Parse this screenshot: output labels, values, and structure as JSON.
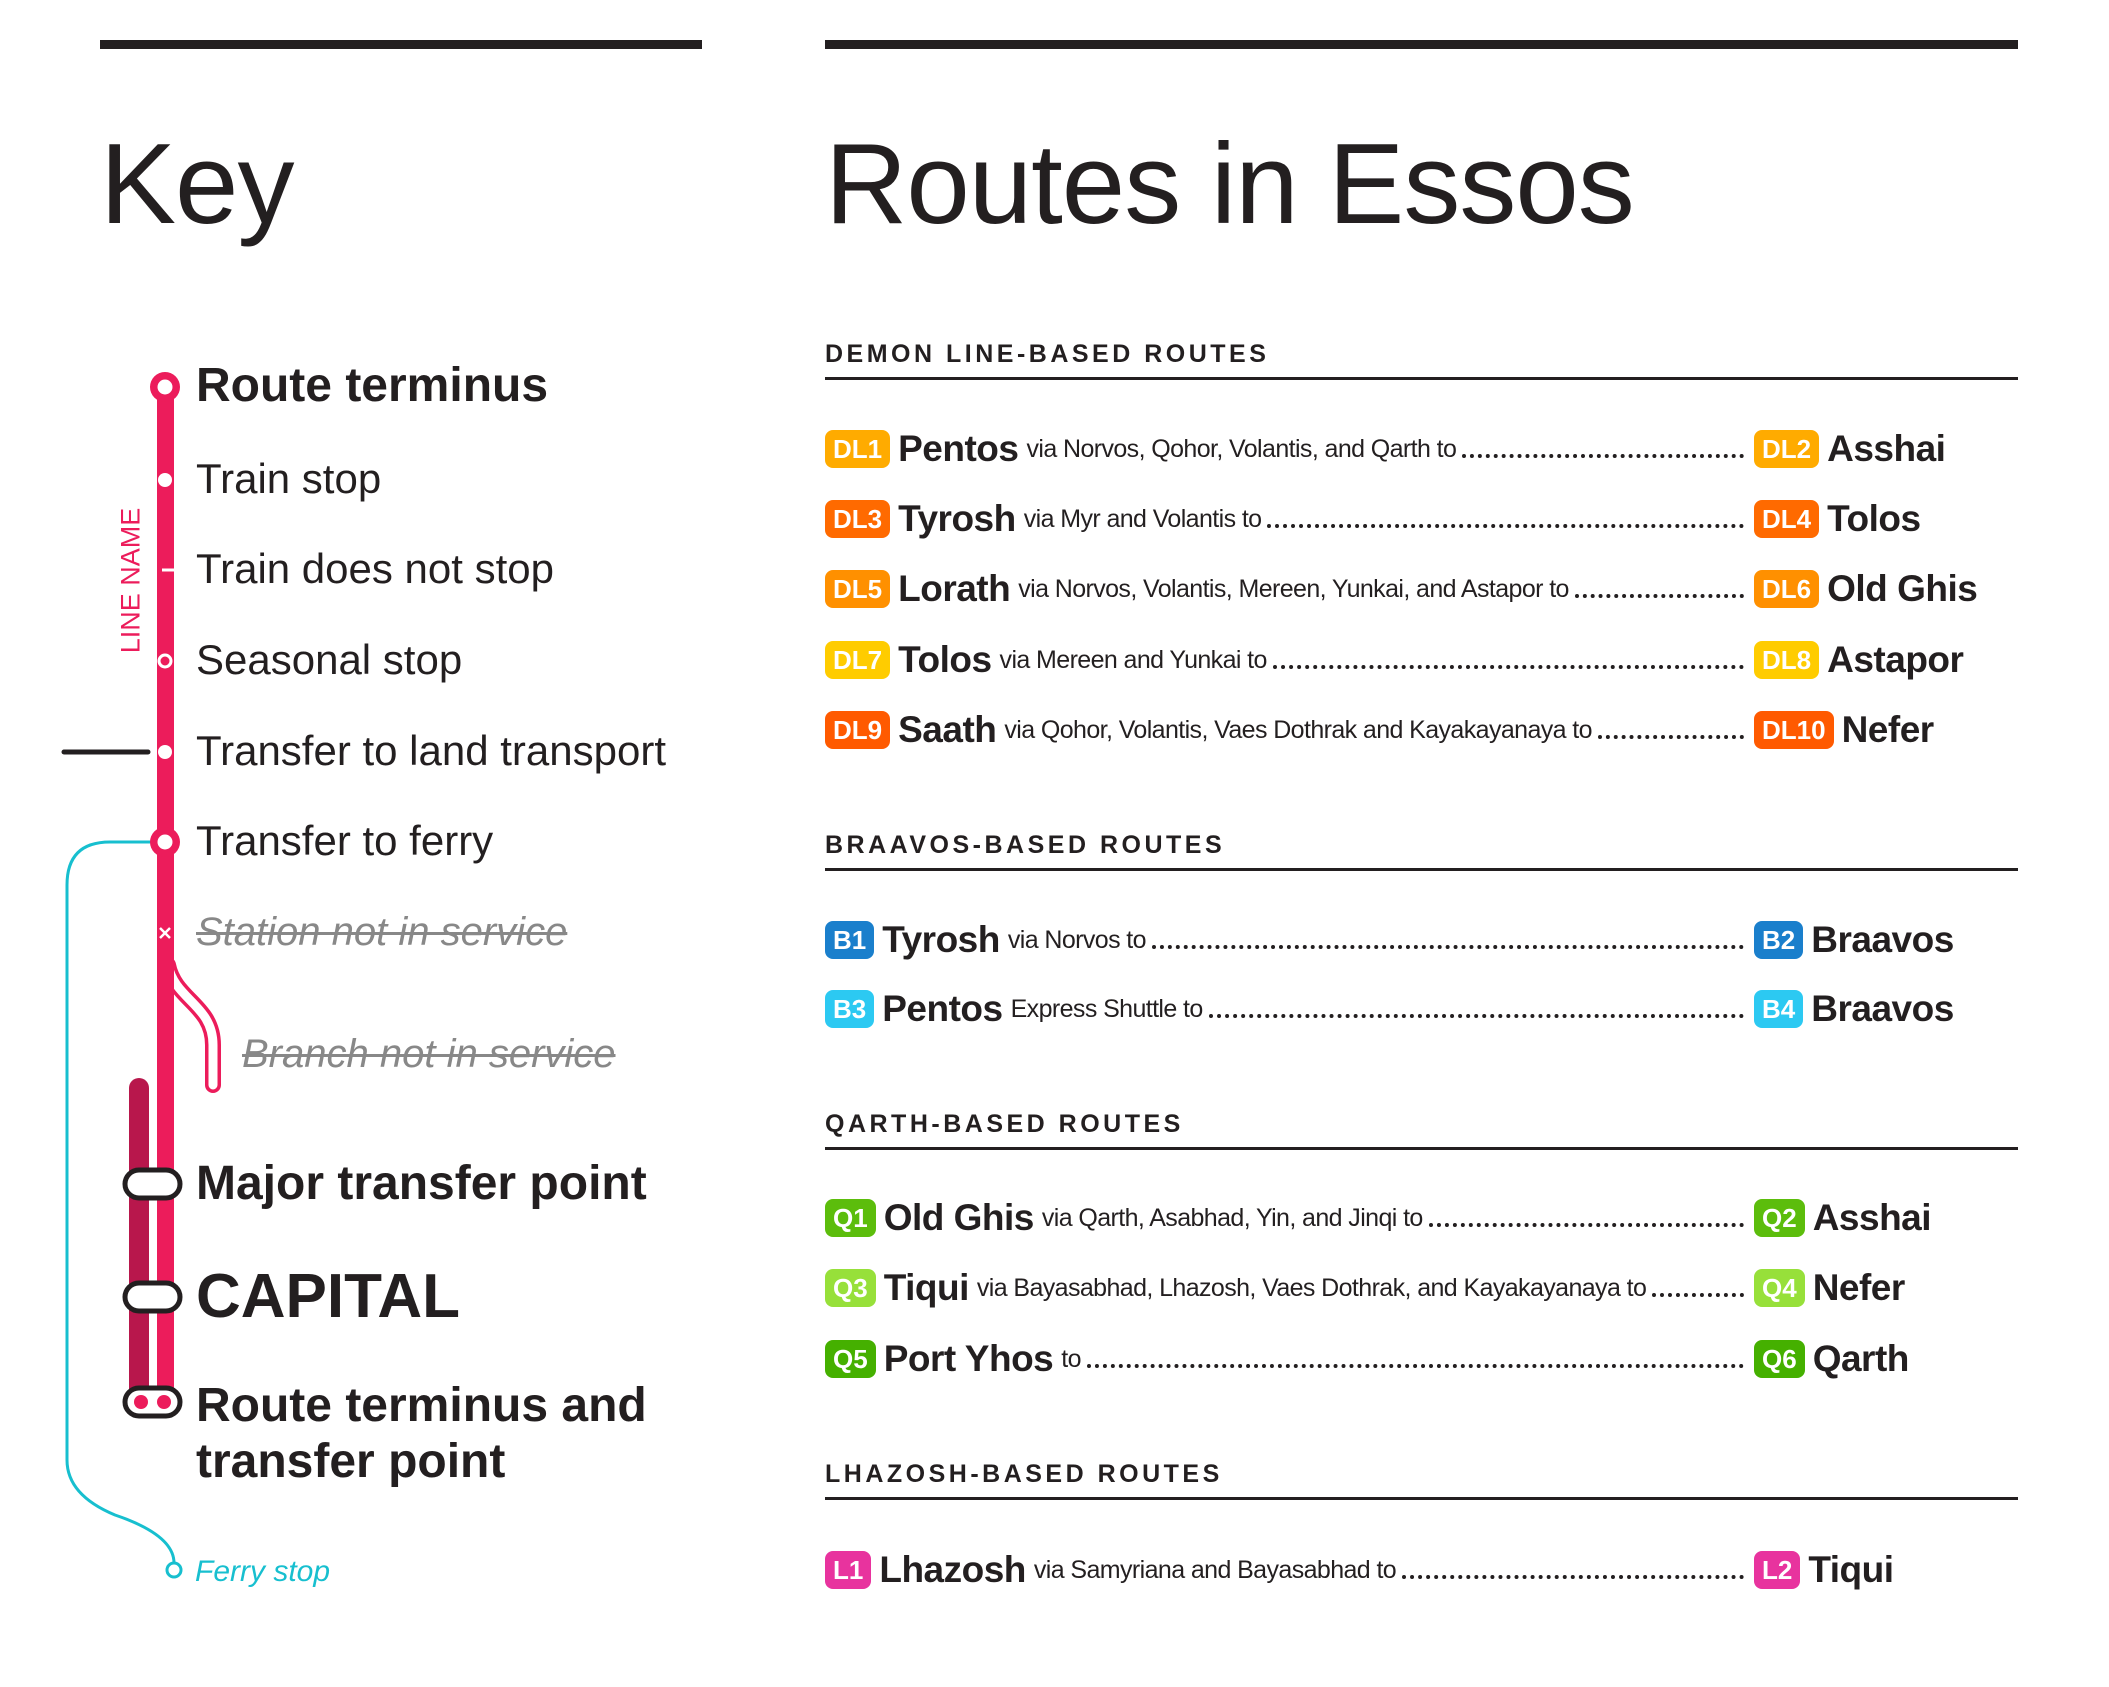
{
  "key": {
    "title": "Key",
    "line_name": "LINE NAME",
    "items": [
      {
        "label": "Route terminus"
      },
      {
        "label": "Train stop"
      },
      {
        "label": "Train does not stop"
      },
      {
        "label": "Seasonal stop"
      },
      {
        "label": "Transfer to land transport"
      },
      {
        "label": "Transfer to ferry"
      },
      {
        "label": "Station not in service"
      },
      {
        "label": "Branch not in service"
      },
      {
        "label": "Major transfer point"
      },
      {
        "label": "CAPITAL"
      },
      {
        "label": "Route terminus and transfer point"
      }
    ],
    "ferry_stop": "Ferry stop",
    "colors": {
      "line": "#ec1c5b",
      "line_dark": "#b8174c",
      "ferry": "#17bfcf"
    }
  },
  "routes": {
    "title": "Routes in Essos",
    "sections": [
      {
        "heading": "DEMON LINE-BASED ROUTES",
        "rows": [
          {
            "from_code": "DL1",
            "from_color": "#ffab00",
            "from": "Pentos",
            "via": "via Norvos, Qohor, Volantis, and Qarth to",
            "to_code": "DL2",
            "to_color": "#ffab00",
            "to": "Asshai"
          },
          {
            "from_code": "DL3",
            "from_color": "#ff6a00",
            "from": "Tyrosh",
            "via": "via Myr and Volantis to",
            "to_code": "DL4",
            "to_color": "#ff6a00",
            "to": "Tolos"
          },
          {
            "from_code": "DL5",
            "from_color": "#ff9000",
            "from": "Lorath",
            "via": "via Norvos, Volantis, Mereen, Yunkai, and Astapor to",
            "to_code": "DL6",
            "to_color": "#ff9000",
            "to": "Old Ghis"
          },
          {
            "from_code": "DL7",
            "from_color": "#ffcc00",
            "from": "Tolos",
            "via": "via Mereen and Yunkai to",
            "to_code": "DL8",
            "to_color": "#ffcc00",
            "to": "Astapor"
          },
          {
            "from_code": "DL9",
            "from_color": "#ff5a00",
            "from": "Saath",
            "via": "via Qohor, Volantis, Vaes Dothrak and Kayakayanaya to",
            "to_code": "DL10",
            "to_color": "#ff5a00",
            "to": "Nefer"
          }
        ]
      },
      {
        "heading": "BRAAVOS-BASED ROUTES",
        "rows": [
          {
            "from_code": "B1",
            "from_color": "#1a7fcc",
            "from": "Tyrosh",
            "via": "via Norvos to",
            "to_code": "B2",
            "to_color": "#1a7fcc",
            "to": "Braavos"
          },
          {
            "from_code": "B3",
            "from_color": "#2cc9f2",
            "from": "Pentos",
            "via": "Express Shuttle to",
            "to_code": "B4",
            "to_color": "#2cc9f2",
            "to": "Braavos"
          }
        ]
      },
      {
        "heading": "QARTH-BASED ROUTES",
        "rows": [
          {
            "from_code": "Q1",
            "from_color": "#5cbd0c",
            "from": "Old Ghis",
            "via": "via Qarth, Asabhad, Yin, and Jinqi to",
            "to_code": "Q2",
            "to_color": "#5cbd0c",
            "to": "Asshai"
          },
          {
            "from_code": "Q3",
            "from_color": "#97e03a",
            "from": "Tiqui",
            "via": "via Bayasabhad, Lhazosh, Vaes Dothrak, and Kayakayanaya to",
            "to_code": "Q4",
            "to_color": "#97e03a",
            "to": "Nefer"
          },
          {
            "from_code": "Q5",
            "from_color": "#45b000",
            "from": "Port Yhos",
            "via": "to",
            "to_code": "Q6",
            "to_color": "#45b000",
            "to": "Qarth"
          }
        ]
      },
      {
        "heading": "LHAZOSH-BASED ROUTES",
        "rows": [
          {
            "from_code": "L1",
            "from_color": "#e8339e",
            "from": "Lhazosh",
            "via": "via Samyriana and Bayasabhad to",
            "to_code": "L2",
            "to_color": "#e8339e",
            "to": "Tiqui"
          }
        ]
      }
    ]
  }
}
